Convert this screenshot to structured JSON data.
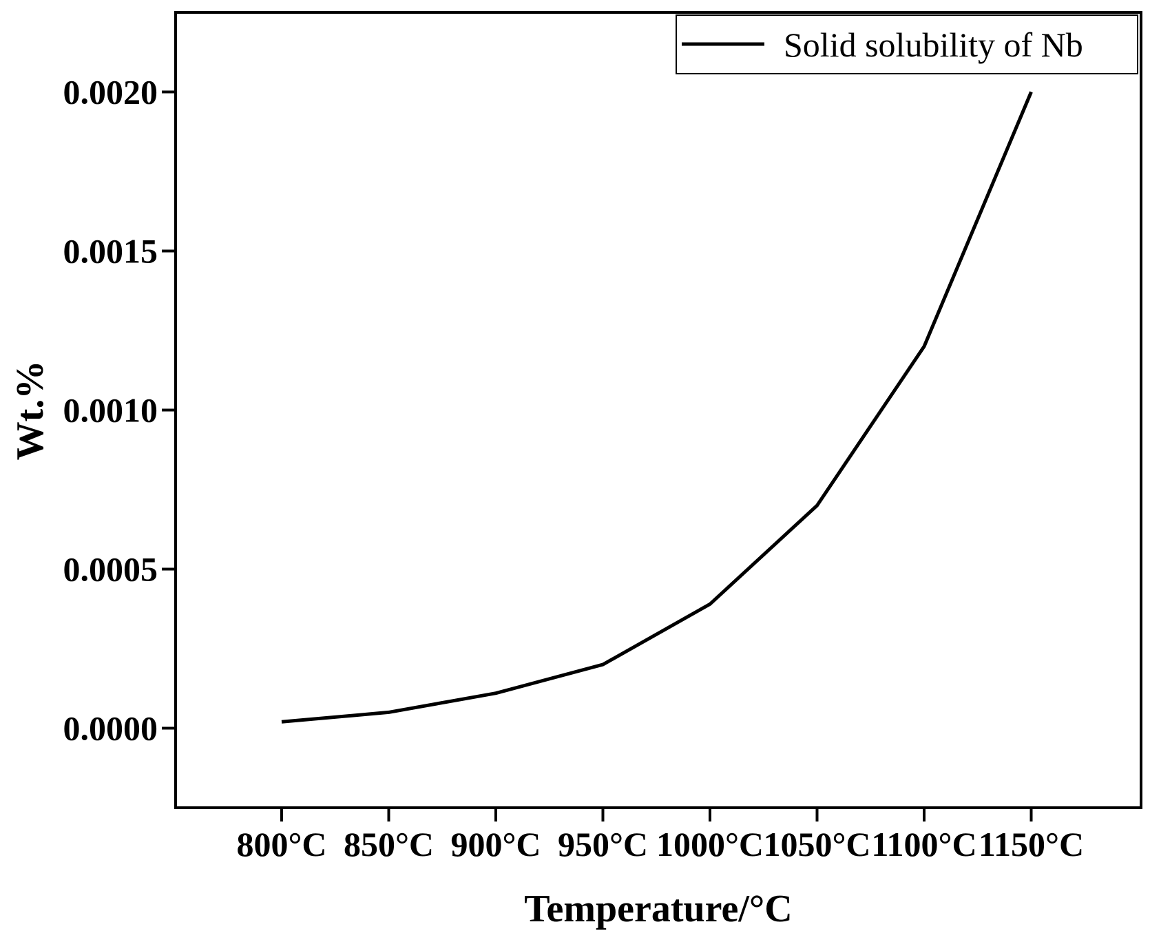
{
  "colors": {
    "line": "#000000",
    "axis": "#000000",
    "background": "#ffffff"
  },
  "chart_data": {
    "type": "line",
    "title": "",
    "xlabel": "Temperature/°C",
    "ylabel": "Wt.%",
    "categories": [
      "800°C",
      "850°C",
      "900°C",
      "950°C",
      "1000°C",
      "1050°C",
      "1100°C",
      "1150°C"
    ],
    "series": [
      {
        "name": "Solid solubility of Nb",
        "values": [
          2e-05,
          5e-05,
          0.00011,
          0.0002,
          0.00039,
          0.0007,
          0.0012,
          0.002
        ]
      }
    ],
    "yticks": [
      "0.0000",
      "0.0005",
      "0.0010",
      "0.0015",
      "0.0020"
    ],
    "ylim": [
      -0.00025,
      0.00225
    ],
    "grid": false,
    "legend": "top-right"
  }
}
